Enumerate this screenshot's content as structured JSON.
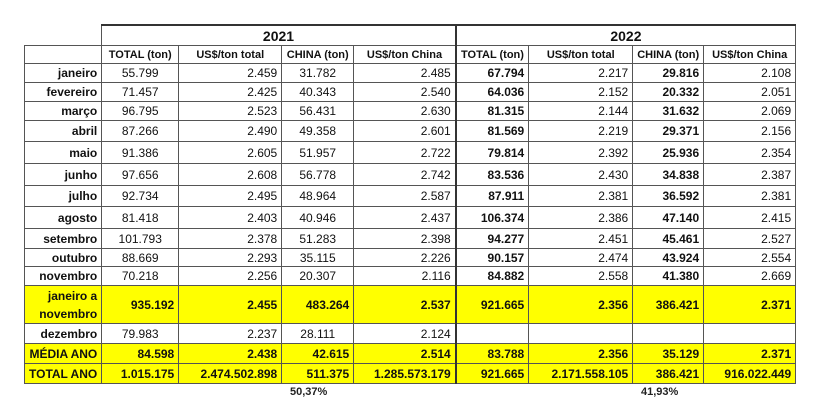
{
  "years": [
    "2021",
    "2022"
  ],
  "columns": [
    "TOTAL (ton)",
    "US$/ton total",
    "CHINA (ton)",
    "US$/ton China"
  ],
  "rows": [
    {
      "label": "janeiro",
      "v": [
        "55.799",
        "2.459",
        "31.782",
        "2.485",
        "67.794",
        "2.217",
        "29.816",
        "2.108"
      ]
    },
    {
      "label": "fevereiro",
      "v": [
        "71.457",
        "2.425",
        "40.343",
        "2.540",
        "64.036",
        "2.152",
        "20.332",
        "2.051"
      ]
    },
    {
      "label": "março",
      "v": [
        "96.795",
        "2.523",
        "56.431",
        "2.630",
        "81.315",
        "2.144",
        "31.632",
        "2.069"
      ]
    },
    {
      "label": "abril",
      "v": [
        "87.266",
        "2.490",
        "49.358",
        "2.601",
        "81.569",
        "2.219",
        "29.371",
        "2.156"
      ]
    },
    {
      "label": "maio",
      "v": [
        "91.386",
        "2.605",
        "51.957",
        "2.722",
        "79.814",
        "2.392",
        "25.936",
        "2.354"
      ]
    },
    {
      "label": "junho",
      "v": [
        "97.656",
        "2.608",
        "56.778",
        "2.742",
        "83.536",
        "2.430",
        "34.838",
        "2.387"
      ]
    },
    {
      "label": "julho",
      "v": [
        "92.734",
        "2.495",
        "48.964",
        "2.587",
        "87.911",
        "2.381",
        "36.592",
        "2.381"
      ]
    },
    {
      "label": "agosto",
      "v": [
        "81.418",
        "2.403",
        "40.946",
        "2.437",
        "106.374",
        "2.386",
        "47.140",
        "2.415"
      ]
    },
    {
      "label": "setembro",
      "v": [
        "101.793",
        "2.378",
        "51.283",
        "2.398",
        "94.277",
        "2.451",
        "45.461",
        "2.527"
      ]
    },
    {
      "label": "outubro",
      "v": [
        "88.669",
        "2.293",
        "35.115",
        "2.226",
        "90.157",
        "2.474",
        "43.924",
        "2.554"
      ]
    },
    {
      "label": "novembro",
      "v": [
        "70.218",
        "2.256",
        "20.307",
        "2.116",
        "84.882",
        "2.558",
        "41.380",
        "2.669"
      ]
    }
  ],
  "jan_nov": {
    "label_1": "janeiro a",
    "label_2": "novembro",
    "v": [
      "935.192",
      "2.455",
      "483.264",
      "2.537",
      "921.665",
      "2.356",
      "386.421",
      "2.371"
    ]
  },
  "dezembro": {
    "label": "dezembro",
    "v": [
      "79.983",
      "2.237",
      "28.111",
      "2.124",
      "",
      "",
      "",
      ""
    ]
  },
  "media": {
    "label": "MÉDIA ANO",
    "v": [
      "84.598",
      "2.438",
      "42.615",
      "2.514",
      "83.788",
      "2.356",
      "35.129",
      "2.371"
    ]
  },
  "total": {
    "label": "TOTAL ANO",
    "v": [
      "1.015.175",
      "2.474.502.898",
      "511.375",
      "1.285.573.179",
      "921.665",
      "2.171.558.105",
      "386.421",
      "916.022.449"
    ]
  },
  "percent_2021": "50,37%",
  "percent_2022": "41,93%",
  "highlight_color": "#ffff00"
}
